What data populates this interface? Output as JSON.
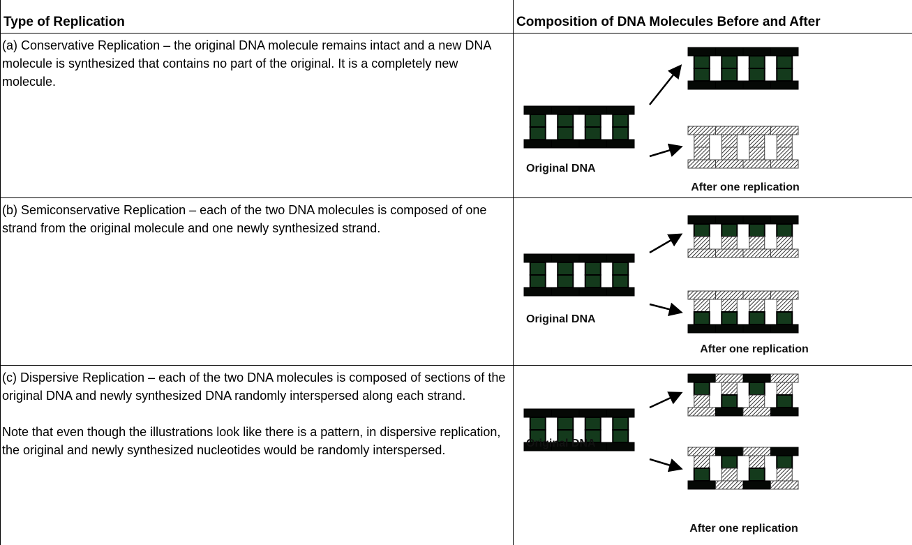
{
  "table": {
    "header": [
      "Type of Replication",
      "Composition of DNA Molecules Before and After"
    ],
    "rows": [
      {
        "description": [
          "(a) Conservative Replication – the original DNA molecule remains intact and a new DNA molecule is synthesized that contains no part of the original. It is a completely new molecule."
        ],
        "original_label": "Original DNA",
        "after_label": "After one replication"
      },
      {
        "description": [
          "(b) Semiconservative Replication – each of the two DNA molecules is composed of one strand from the original molecule and one newly synthesized strand."
        ],
        "original_label": "Original DNA",
        "after_label": "After one replication"
      },
      {
        "description": [
          "(c) Dispersive Replication – each of the two DNA molecules is composed of sections of the original DNA and newly synthesized DNA randomly interspersed along each strand.",
          "Note that even though the illustrations look like there is a pattern, in dispersive replication, the original and newly synthesized nucleotides would be randomly interspersed."
        ],
        "original_label": "Original DNA",
        "after_label": "After one replication"
      }
    ]
  }
}
